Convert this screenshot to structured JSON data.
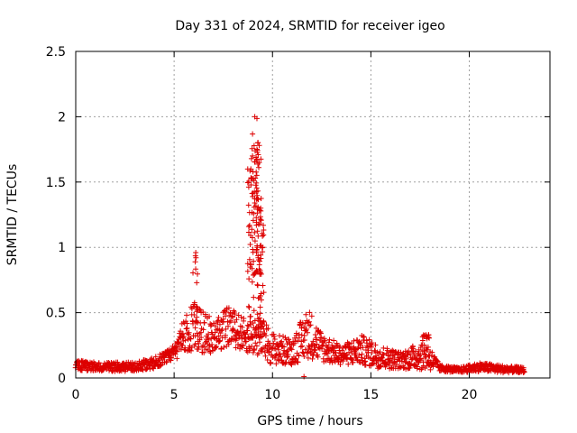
{
  "chart_data": {
    "type": "scatter",
    "title": "Day 331 of 2024, SRMTID for receiver igeo",
    "xlabel": "GPS time / hours",
    "ylabel": "SRMTID / TECUs",
    "xlim": [
      0,
      24.1
    ],
    "ylim": [
      0,
      2.5
    ],
    "grid": true,
    "marker": "+",
    "series_color": "#dd0000",
    "xticks": [
      0,
      5,
      10,
      15,
      20
    ],
    "xtick_labels": [
      "0",
      "5",
      "10",
      "15",
      "20"
    ],
    "yticks": [
      0,
      0.5,
      1,
      1.5,
      2,
      2.5
    ],
    "ytick_labels": [
      "0",
      "0.5",
      "1",
      "1.5",
      "2",
      "2.5"
    ],
    "series": [
      {
        "name": "SRMTID",
        "x_start": 0,
        "x_end": 22.8,
        "profile": [
          [
            0.0,
            0.06,
            0.14
          ],
          [
            1.0,
            0.05,
            0.12
          ],
          [
            2.0,
            0.05,
            0.12
          ],
          [
            3.0,
            0.05,
            0.12
          ],
          [
            4.0,
            0.07,
            0.16
          ],
          [
            4.8,
            0.12,
            0.22
          ],
          [
            5.2,
            0.15,
            0.3
          ],
          [
            5.6,
            0.2,
            0.55
          ],
          [
            6.1,
            0.2,
            0.55
          ],
          [
            7.0,
            0.18,
            0.45
          ],
          [
            7.8,
            0.25,
            0.55
          ],
          [
            8.6,
            0.2,
            0.45
          ],
          [
            9.5,
            0.15,
            0.45
          ],
          [
            10.0,
            0.1,
            0.35
          ],
          [
            11.0,
            0.1,
            0.3
          ],
          [
            11.8,
            0.15,
            0.55
          ],
          [
            12.5,
            0.12,
            0.35
          ],
          [
            13.5,
            0.1,
            0.25
          ],
          [
            14.5,
            0.1,
            0.33
          ],
          [
            15.5,
            0.07,
            0.25
          ],
          [
            16.5,
            0.07,
            0.2
          ],
          [
            17.8,
            0.06,
            0.3
          ],
          [
            18.5,
            0.05,
            0.1
          ],
          [
            19.5,
            0.04,
            0.08
          ],
          [
            20.5,
            0.05,
            0.12
          ],
          [
            21.5,
            0.04,
            0.1
          ],
          [
            22.8,
            0.04,
            0.08
          ]
        ],
        "peaks": [
          {
            "x": 6.1,
            "y": 0.96
          },
          {
            "x": 9.1,
            "y": 2.0
          },
          {
            "x": 9.25,
            "y": 1.8
          },
          {
            "x": 8.9,
            "y": 1.6
          },
          {
            "x": 9.4,
            "y": 1.3
          },
          {
            "x": 17.8,
            "y": 0.33
          },
          {
            "x": 11.6,
            "y": 0.01
          }
        ]
      }
    ]
  }
}
